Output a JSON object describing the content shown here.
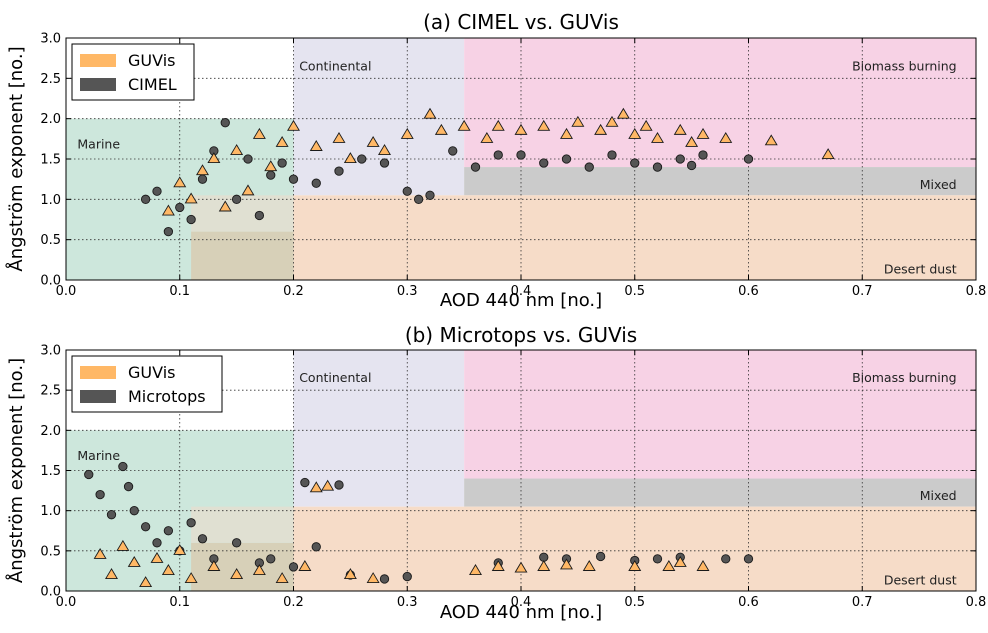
{
  "chart_data": [
    {
      "type": "scatter",
      "title": "(a) CIMEL vs. GUVis",
      "xlabel": "AOD 440 nm [no.]",
      "ylabel": "Ångström exponent [no.]",
      "xlim": [
        0.0,
        0.8
      ],
      "ylim": [
        0.0,
        3.0
      ],
      "xticks": [
        "0.0",
        "0.1",
        "0.2",
        "0.3",
        "0.4",
        "0.5",
        "0.6",
        "0.7",
        "0.8"
      ],
      "yticks": [
        "0.0",
        "0.5",
        "1.0",
        "1.5",
        "2.0",
        "2.5",
        "3.0"
      ],
      "grid": true,
      "legend": {
        "placement": "top-left",
        "entries": [
          {
            "label": "GUVis",
            "color": "#ffb866",
            "marker": "triangle"
          },
          {
            "label": "CIMEL",
            "color": "#555555",
            "marker": "circle"
          }
        ]
      },
      "regions": [
        {
          "label": "Marine",
          "x": [
            0.0,
            0.2
          ],
          "y": [
            0.0,
            2.0
          ],
          "color": "#cde7dc"
        },
        {
          "label": "Continental",
          "x": [
            0.2,
            0.35
          ],
          "y": [
            1.05,
            3.0
          ],
          "color": "#e5e4f0"
        },
        {
          "label": "Biomass burning",
          "x": [
            0.35,
            0.8
          ],
          "y": [
            1.4,
            3.0
          ],
          "color": "#f7d2e5"
        },
        {
          "label": "Mixed",
          "x": [
            0.35,
            0.8
          ],
          "y": [
            1.05,
            1.4
          ],
          "color": "#cbcbcb"
        },
        {
          "label": "Desert dust",
          "x": [
            0.2,
            0.8
          ],
          "y": [
            0.0,
            1.05
          ],
          "color": "#f6dcc8"
        },
        {
          "label": "",
          "x": [
            0.11,
            0.2
          ],
          "y": [
            0.0,
            0.6
          ],
          "color": "#d7d0b8"
        },
        {
          "label": "",
          "x": [
            0.11,
            0.2
          ],
          "y": [
            0.6,
            1.05
          ],
          "color": "#e0e0d2"
        }
      ],
      "series": [
        {
          "name": "GUVis",
          "marker": "triangle",
          "color": "#ffb866",
          "points": [
            [
              0.09,
              0.85
            ],
            [
              0.1,
              1.2
            ],
            [
              0.11,
              1.0
            ],
            [
              0.12,
              1.35
            ],
            [
              0.13,
              1.5
            ],
            [
              0.14,
              0.9
            ],
            [
              0.15,
              1.6
            ],
            [
              0.16,
              1.1
            ],
            [
              0.17,
              1.8
            ],
            [
              0.18,
              1.4
            ],
            [
              0.19,
              1.7
            ],
            [
              0.2,
              1.9
            ],
            [
              0.22,
              1.65
            ],
            [
              0.24,
              1.75
            ],
            [
              0.25,
              1.5
            ],
            [
              0.27,
              1.7
            ],
            [
              0.28,
              1.6
            ],
            [
              0.3,
              1.8
            ],
            [
              0.32,
              2.05
            ],
            [
              0.33,
              1.85
            ],
            [
              0.35,
              1.9
            ],
            [
              0.37,
              1.75
            ],
            [
              0.38,
              1.9
            ],
            [
              0.4,
              1.85
            ],
            [
              0.42,
              1.9
            ],
            [
              0.44,
              1.8
            ],
            [
              0.45,
              1.95
            ],
            [
              0.47,
              1.85
            ],
            [
              0.48,
              1.95
            ],
            [
              0.49,
              2.05
            ],
            [
              0.5,
              1.8
            ],
            [
              0.51,
              1.9
            ],
            [
              0.52,
              1.75
            ],
            [
              0.54,
              1.85
            ],
            [
              0.55,
              1.7
            ],
            [
              0.56,
              1.8
            ],
            [
              0.58,
              1.75
            ],
            [
              0.62,
              1.72
            ],
            [
              0.67,
              1.55
            ]
          ]
        },
        {
          "name": "CIMEL",
          "marker": "circle",
          "color": "#555555",
          "points": [
            [
              0.07,
              1.0
            ],
            [
              0.08,
              1.1
            ],
            [
              0.09,
              0.6
            ],
            [
              0.1,
              0.9
            ],
            [
              0.11,
              0.75
            ],
            [
              0.12,
              1.25
            ],
            [
              0.13,
              1.6
            ],
            [
              0.14,
              1.95
            ],
            [
              0.15,
              1.0
            ],
            [
              0.16,
              1.5
            ],
            [
              0.17,
              0.8
            ],
            [
              0.18,
              1.3
            ],
            [
              0.19,
              1.45
            ],
            [
              0.2,
              1.25
            ],
            [
              0.22,
              1.2
            ],
            [
              0.24,
              1.35
            ],
            [
              0.26,
              1.5
            ],
            [
              0.28,
              1.45
            ],
            [
              0.3,
              1.1
            ],
            [
              0.31,
              1.0
            ],
            [
              0.32,
              1.05
            ],
            [
              0.34,
              1.6
            ],
            [
              0.36,
              1.4
            ],
            [
              0.38,
              1.55
            ],
            [
              0.4,
              1.55
            ],
            [
              0.42,
              1.45
            ],
            [
              0.44,
              1.5
            ],
            [
              0.46,
              1.4
            ],
            [
              0.48,
              1.55
            ],
            [
              0.5,
              1.45
            ],
            [
              0.52,
              1.4
            ],
            [
              0.54,
              1.5
            ],
            [
              0.55,
              1.42
            ],
            [
              0.56,
              1.55
            ],
            [
              0.6,
              1.5
            ]
          ]
        }
      ]
    },
    {
      "type": "scatter",
      "title": "(b) Microtops vs. GUVis",
      "xlabel": "AOD 440 nm [no.]",
      "ylabel": "Ångström exponent [no.]",
      "xlim": [
        0.0,
        0.8
      ],
      "ylim": [
        0.0,
        3.0
      ],
      "xticks": [
        "0.0",
        "0.1",
        "0.2",
        "0.3",
        "0.4",
        "0.5",
        "0.6",
        "0.7",
        "0.8"
      ],
      "yticks": [
        "0.0",
        "0.5",
        "1.0",
        "1.5",
        "2.0",
        "2.5",
        "3.0"
      ],
      "grid": true,
      "legend": {
        "placement": "top-left",
        "entries": [
          {
            "label": "GUVis",
            "color": "#ffb866",
            "marker": "triangle"
          },
          {
            "label": "Microtops",
            "color": "#555555",
            "marker": "circle"
          }
        ]
      },
      "regions": [
        {
          "label": "Marine",
          "x": [
            0.0,
            0.2
          ],
          "y": [
            0.0,
            2.0
          ],
          "color": "#cde7dc"
        },
        {
          "label": "Continental",
          "x": [
            0.2,
            0.35
          ],
          "y": [
            1.05,
            3.0
          ],
          "color": "#e5e4f0"
        },
        {
          "label": "Biomass burning",
          "x": [
            0.35,
            0.8
          ],
          "y": [
            1.4,
            3.0
          ],
          "color": "#f7d2e5"
        },
        {
          "label": "Mixed",
          "x": [
            0.35,
            0.8
          ],
          "y": [
            1.05,
            1.4
          ],
          "color": "#cbcbcb"
        },
        {
          "label": "Desert dust",
          "x": [
            0.2,
            0.8
          ],
          "y": [
            0.0,
            1.05
          ],
          "color": "#f6dcc8"
        },
        {
          "label": "",
          "x": [
            0.11,
            0.2
          ],
          "y": [
            0.0,
            0.6
          ],
          "color": "#d7d0b8"
        },
        {
          "label": "",
          "x": [
            0.11,
            0.2
          ],
          "y": [
            0.6,
            1.05
          ],
          "color": "#e0e0d2"
        }
      ],
      "series": [
        {
          "name": "GUVis",
          "marker": "triangle",
          "color": "#ffb866",
          "points": [
            [
              0.03,
              0.45
            ],
            [
              0.04,
              0.2
            ],
            [
              0.05,
              0.55
            ],
            [
              0.06,
              0.35
            ],
            [
              0.07,
              0.1
            ],
            [
              0.08,
              0.4
            ],
            [
              0.09,
              0.25
            ],
            [
              0.1,
              0.5
            ],
            [
              0.11,
              0.15
            ],
            [
              0.13,
              0.3
            ],
            [
              0.15,
              0.2
            ],
            [
              0.17,
              0.25
            ],
            [
              0.19,
              0.15
            ],
            [
              0.21,
              0.3
            ],
            [
              0.22,
              1.28
            ],
            [
              0.23,
              1.3
            ],
            [
              0.25,
              0.2
            ],
            [
              0.27,
              0.15
            ],
            [
              0.36,
              0.25
            ],
            [
              0.38,
              0.3
            ],
            [
              0.4,
              0.28
            ],
            [
              0.42,
              0.3
            ],
            [
              0.44,
              0.32
            ],
            [
              0.46,
              0.3
            ],
            [
              0.5,
              0.3
            ],
            [
              0.53,
              0.3
            ],
            [
              0.54,
              0.35
            ],
            [
              0.56,
              0.3
            ]
          ]
        },
        {
          "name": "Microtops",
          "marker": "circle",
          "color": "#555555",
          "points": [
            [
              0.02,
              1.45
            ],
            [
              0.03,
              1.2
            ],
            [
              0.04,
              0.95
            ],
            [
              0.05,
              1.55
            ],
            [
              0.055,
              1.3
            ],
            [
              0.06,
              1.0
            ],
            [
              0.07,
              0.8
            ],
            [
              0.08,
              0.6
            ],
            [
              0.09,
              0.75
            ],
            [
              0.1,
              0.5
            ],
            [
              0.11,
              0.85
            ],
            [
              0.12,
              0.65
            ],
            [
              0.13,
              0.4
            ],
            [
              0.15,
              0.6
            ],
            [
              0.17,
              0.35
            ],
            [
              0.18,
              0.4
            ],
            [
              0.2,
              0.3
            ],
            [
              0.21,
              1.35
            ],
            [
              0.24,
              1.32
            ],
            [
              0.22,
              0.55
            ],
            [
              0.25,
              0.2
            ],
            [
              0.28,
              0.15
            ],
            [
              0.3,
              0.18
            ],
            [
              0.38,
              0.35
            ],
            [
              0.42,
              0.42
            ],
            [
              0.44,
              0.4
            ],
            [
              0.47,
              0.43
            ],
            [
              0.5,
              0.38
            ],
            [
              0.52,
              0.4
            ],
            [
              0.54,
              0.42
            ],
            [
              0.58,
              0.4
            ],
            [
              0.6,
              0.4
            ]
          ]
        }
      ]
    }
  ]
}
